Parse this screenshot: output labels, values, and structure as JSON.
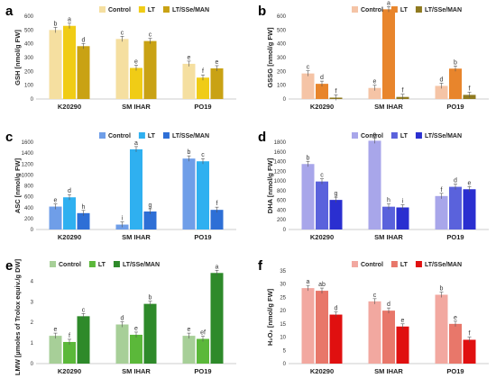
{
  "chart_data": [
    {
      "panel": "a",
      "type": "bar",
      "ylabel": "GSH [nmol/g FW]",
      "ylim": [
        0,
        600
      ],
      "yticks": [
        0,
        100,
        200,
        300,
        400,
        500,
        600
      ],
      "categories": [
        "K20290",
        "SM IHAR",
        "PO19"
      ],
      "legend_position": "top-right",
      "series": [
        {
          "name": "Control",
          "color": "#f5dfa0",
          "values": [
            500,
            435,
            255
          ],
          "letters": [
            "b",
            "c",
            "e"
          ]
        },
        {
          "name": "LT",
          "color": "#f0cc16",
          "values": [
            530,
            225,
            155
          ],
          "letters": [
            "a",
            "e",
            "f"
          ]
        },
        {
          "name": "LT/SSe/MAN",
          "color": "#c9a214",
          "values": [
            383,
            420,
            222
          ],
          "letters": [
            "d",
            "c",
            "e"
          ]
        }
      ]
    },
    {
      "panel": "b",
      "type": "bar",
      "ylabel": "GSSG [nmol/g FW]",
      "ylim": [
        0,
        600
      ],
      "yticks": [
        0,
        100,
        200,
        300,
        400,
        500,
        600
      ],
      "categories": [
        "K20290",
        "SM IHAR",
        "PO19"
      ],
      "legend_position": "top-right",
      "series": [
        {
          "name": "Control",
          "color": "#f5c4a6",
          "values": [
            185,
            80,
            95
          ],
          "letters": [
            "c",
            "e",
            "d"
          ]
        },
        {
          "name": "LT",
          "color": "#e8852c",
          "values": [
            110,
            650,
            220
          ],
          "letters": [
            "d",
            "a",
            "b"
          ]
        },
        {
          "name": "LT/SSe/MAN",
          "color": "#8f7a20",
          "values": [
            10,
            15,
            30
          ],
          "letters": [
            "f",
            "f",
            "f"
          ]
        }
      ]
    },
    {
      "panel": "c",
      "type": "bar",
      "ylabel": "ASC [nmol/g FW]",
      "ylim": [
        0,
        1600
      ],
      "yticks": [
        0,
        200,
        400,
        600,
        800,
        1000,
        1200,
        1400,
        1600
      ],
      "categories": [
        "K20290",
        "SM IHAR",
        "PO19"
      ],
      "legend_position": "top-right",
      "series": [
        {
          "name": "Control",
          "color": "#6f9ee8",
          "values": [
            420,
            90,
            1300
          ],
          "letters": [
            "e",
            "i",
            "b"
          ]
        },
        {
          "name": "LT",
          "color": "#2fb0f0",
          "values": [
            590,
            1470,
            1250
          ],
          "letters": [
            "d",
            "a",
            "c"
          ]
        },
        {
          "name": "LT/SSe/MAN",
          "color": "#2e6fd6",
          "values": [
            300,
            330,
            360
          ],
          "letters": [
            "h",
            "g",
            "f"
          ]
        }
      ]
    },
    {
      "panel": "d",
      "type": "bar",
      "ylabel": "DHA [nmol/g FW]",
      "ylim": [
        0,
        1800
      ],
      "yticks": [
        0,
        200,
        400,
        600,
        800,
        1000,
        1200,
        1400,
        1600,
        1800
      ],
      "categories": [
        "K20290",
        "SM IHAR",
        "PO19"
      ],
      "legend_position": "top-right",
      "series": [
        {
          "name": "Control",
          "color": "#a8a6ea",
          "values": [
            1350,
            1830,
            690
          ],
          "letters": [
            "b",
            "a",
            "f"
          ]
        },
        {
          "name": "LT",
          "color": "#5a62dc",
          "values": [
            990,
            470,
            880
          ],
          "letters": [
            "c",
            "h",
            "d"
          ]
        },
        {
          "name": "LT/SSe/MAN",
          "color": "#2a2fd0",
          "values": [
            610,
            455,
            830
          ],
          "letters": [
            "g",
            "i",
            "e"
          ]
        }
      ]
    },
    {
      "panel": "e",
      "type": "bar",
      "ylabel": "LMW [µmoles of Trolox equiv./g DW]",
      "ylim": [
        0,
        4.5
      ],
      "yticks": [
        0,
        1,
        2,
        3,
        4
      ],
      "categories": [
        "K20290",
        "SM IHAR",
        "PO19"
      ],
      "legend_position": "top-left",
      "series": [
        {
          "name": "Control",
          "color": "#a7cf98",
          "values": [
            1.35,
            1.9,
            1.35
          ],
          "letters": [
            "e",
            "d",
            "e"
          ]
        },
        {
          "name": "LT",
          "color": "#5bb83a",
          "values": [
            1.05,
            1.4,
            1.2
          ],
          "letters": [
            "f",
            "e",
            "ef"
          ]
        },
        {
          "name": "LT/SSe/MAN",
          "color": "#2e8a2a",
          "values": [
            2.3,
            2.9,
            4.4
          ],
          "letters": [
            "c",
            "b",
            "a"
          ]
        }
      ]
    },
    {
      "panel": "f",
      "type": "bar",
      "ylabel": "H₂O₂ [nmol/g FW]",
      "ylim": [
        0,
        35
      ],
      "yticks": [
        0,
        5,
        10,
        15,
        20,
        25,
        30,
        35
      ],
      "categories": [
        "K20290",
        "SM IHAR",
        "PO19"
      ],
      "legend_position": "top-right",
      "series": [
        {
          "name": "Control",
          "color": "#f2a8a0",
          "values": [
            28.5,
            23.5,
            26
          ],
          "letters": [
            "a",
            "c",
            "b"
          ]
        },
        {
          "name": "LT",
          "color": "#e8776a",
          "values": [
            27.5,
            20,
            15
          ],
          "letters": [
            "ab",
            "d",
            "e"
          ]
        },
        {
          "name": "LT/SSe/MAN",
          "color": "#e01010",
          "values": [
            18.5,
            14,
            9
          ],
          "letters": [
            "d",
            "e",
            "f"
          ]
        }
      ]
    }
  ]
}
